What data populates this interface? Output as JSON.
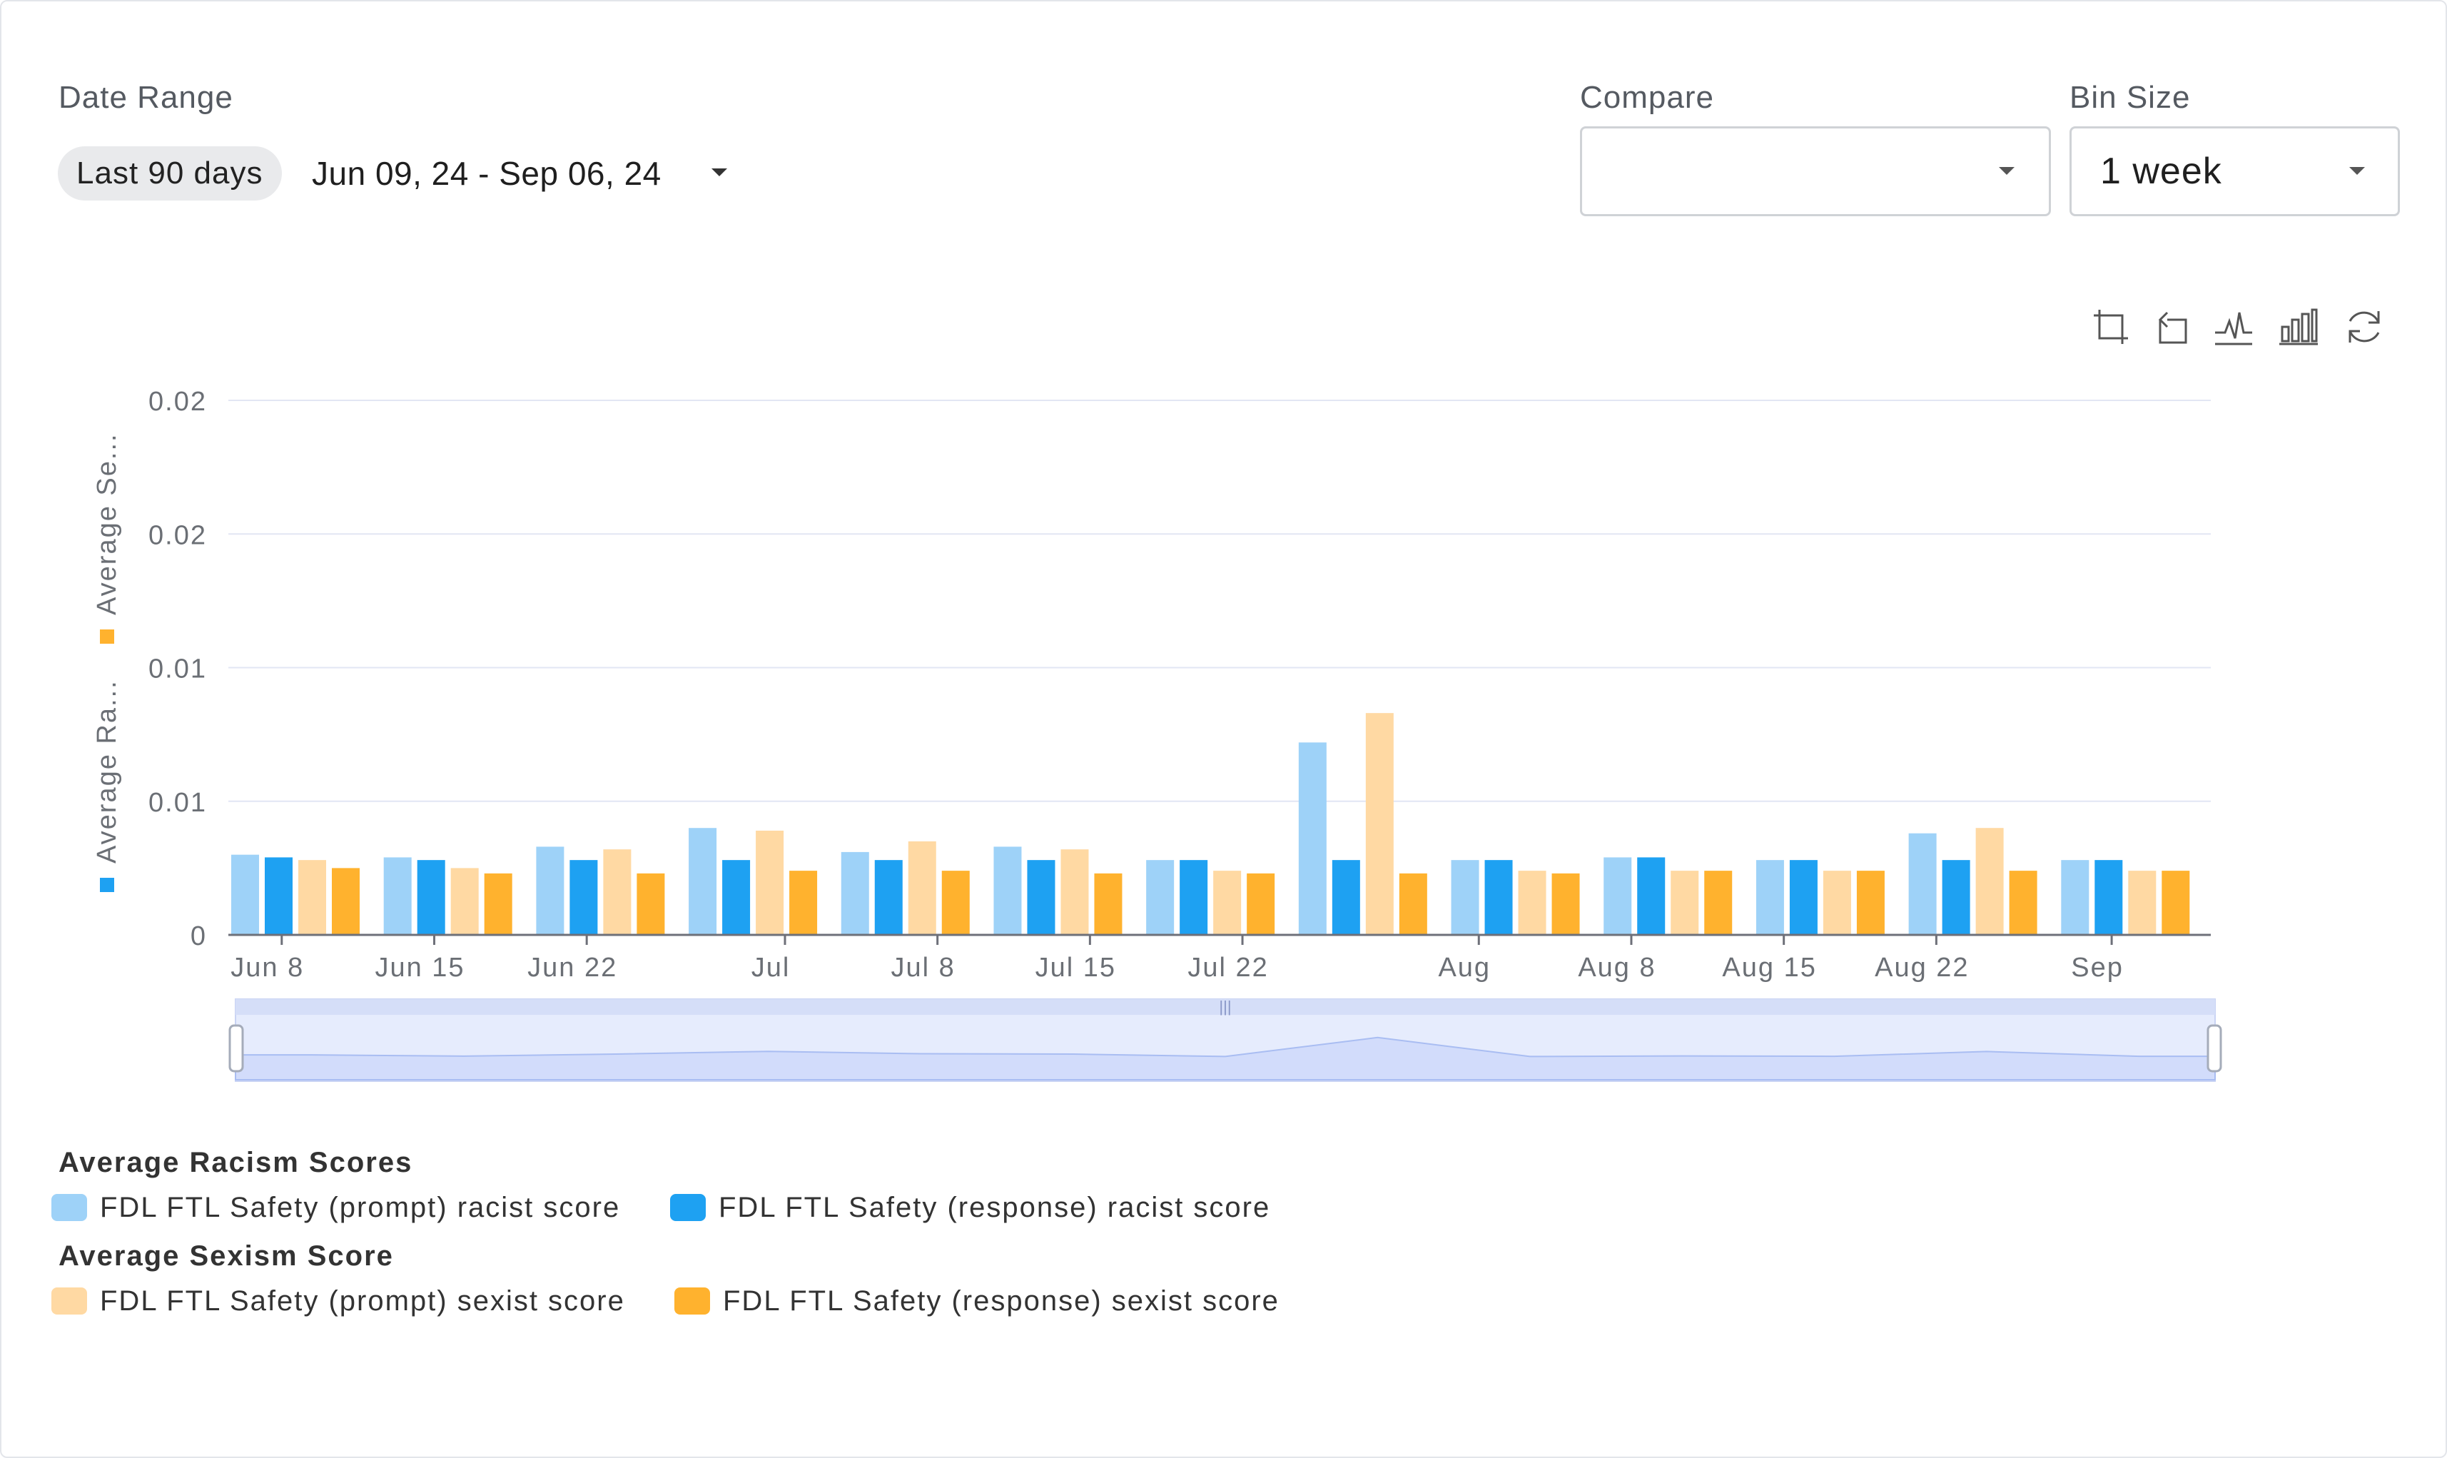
{
  "date_range": {
    "label": "Date Range",
    "preset": "Last 90 days",
    "value": "Jun 09, 24 - Sep 06, 24"
  },
  "compare": {
    "label": "Compare",
    "value": ""
  },
  "bin_size": {
    "label": "Bin Size",
    "value": "1 week"
  },
  "toolbar": {
    "icons": [
      "zoom-select-icon",
      "zoom-reset-icon",
      "line-chart-icon",
      "bar-chart-icon",
      "refresh-icon"
    ]
  },
  "colors": {
    "prompt_racist": "#9ed2f8",
    "response_racist": "#1ea1f2",
    "prompt_sexist": "#ffd9a3",
    "response_sexist": "#ffb22e",
    "grid": "#e2e6f4",
    "slider": "#e6ecfd"
  },
  "legend": {
    "groups": [
      {
        "title": "Average Racism Scores",
        "items": [
          {
            "label": "FDL FTL Safety (prompt) racist score",
            "color": "#9ed2f8"
          },
          {
            "label": "FDL FTL Safety (response) racist score",
            "color": "#1ea1f2"
          }
        ]
      },
      {
        "title": "Average Sexism Score",
        "items": [
          {
            "label": "FDL FTL Safety (prompt) sexist score",
            "color": "#ffd9a3"
          },
          {
            "label": "FDL FTL Safety (response) sexist score",
            "color": "#ffb22e"
          }
        ]
      }
    ]
  },
  "chart_data": {
    "type": "bar",
    "y_axis_title_racism": "Average Ra...",
    "y_axis_title_sexism": "Average Se...",
    "y_ticks": [
      "0",
      "0.01",
      "0.01",
      "0.02",
      "0.02"
    ],
    "y_tick_values": [
      0,
      0.005,
      0.01,
      0.015,
      0.02
    ],
    "ylim": [
      0,
      0.02
    ],
    "grid": true,
    "x_tick_labels": [
      "Jun 8",
      "Jun 15",
      "Jun 22",
      "Jul",
      "Jul 8",
      "Jul 15",
      "Jul 22",
      "Aug",
      "Aug 8",
      "Aug 15",
      "Aug 22",
      "Sep"
    ],
    "x_tick_positions": [
      0.35,
      1.35,
      2.35,
      3.65,
      4.65,
      5.65,
      6.65,
      8.2,
      9.2,
      10.2,
      11.2,
      12.35
    ],
    "bins": 13,
    "series": [
      {
        "name": "FDL FTL Safety (prompt) racist score",
        "values": [
          0.003,
          0.0029,
          0.0033,
          0.004,
          0.0031,
          0.0033,
          0.0028,
          0.0072,
          0.0028,
          0.0029,
          0.0028,
          0.0038,
          0.0028
        ]
      },
      {
        "name": "FDL FTL Safety (response) racist score",
        "values": [
          0.0029,
          0.0028,
          0.0028,
          0.0028,
          0.0028,
          0.0028,
          0.0028,
          0.0028,
          0.0028,
          0.0029,
          0.0028,
          0.0028,
          0.0028
        ]
      },
      {
        "name": "FDL FTL Safety (prompt) sexist score",
        "values": [
          0.0028,
          0.0025,
          0.0032,
          0.0039,
          0.0035,
          0.0032,
          0.0024,
          0.0083,
          0.0024,
          0.0024,
          0.0024,
          0.004,
          0.0024
        ]
      },
      {
        "name": "FDL FTL Safety (response) sexist score",
        "values": [
          0.0025,
          0.0023,
          0.0023,
          0.0024,
          0.0024,
          0.0023,
          0.0023,
          0.0023,
          0.0023,
          0.0024,
          0.0024,
          0.0024,
          0.0024
        ]
      }
    ]
  }
}
